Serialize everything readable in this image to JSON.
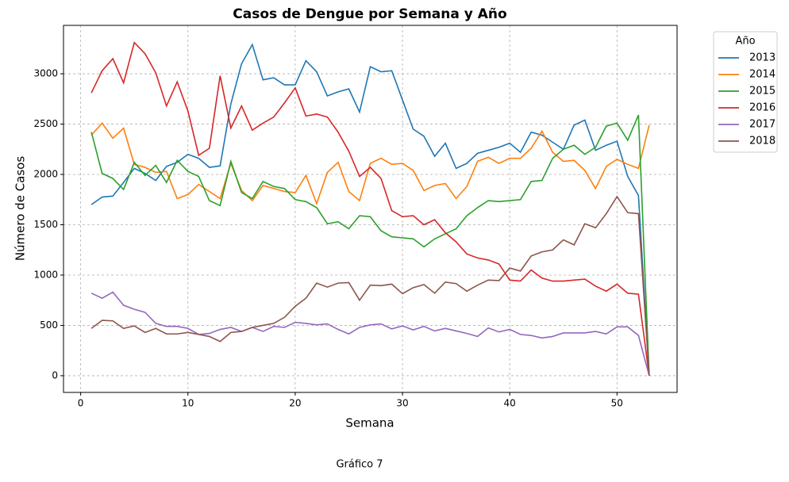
{
  "chart_data": {
    "type": "line",
    "title": "Casos de Dengue por Semana y Año",
    "xlabel": "Semana",
    "ylabel": "Número de Casos",
    "caption": "Gráfico 7",
    "legend_title": "Año",
    "legend": "outside upper right",
    "grid": true,
    "x": [
      1,
      2,
      3,
      4,
      5,
      6,
      7,
      8,
      9,
      10,
      11,
      12,
      13,
      14,
      15,
      16,
      17,
      18,
      19,
      20,
      21,
      22,
      23,
      24,
      25,
      26,
      27,
      28,
      29,
      30,
      31,
      32,
      33,
      34,
      35,
      36,
      37,
      38,
      39,
      40,
      41,
      42,
      43,
      44,
      45,
      46,
      47,
      48,
      49,
      50,
      51,
      52,
      53
    ],
    "xlim": [
      -1.6,
      55.6
    ],
    "xticks": [
      0,
      10,
      20,
      30,
      40,
      50
    ],
    "ylim": [
      -166,
      3481
    ],
    "yticks": [
      0,
      500,
      1000,
      1500,
      2000,
      2500,
      3000
    ],
    "series": [
      {
        "name": "2013",
        "color": "#1f77b4",
        "values": [
          1700,
          1775,
          1785,
          1920,
          2060,
          2010,
          1940,
          2080,
          2120,
          2200,
          2160,
          2070,
          2085,
          2700,
          3100,
          3290,
          2940,
          2960,
          2890,
          2890,
          3130,
          3020,
          2780,
          2820,
          2850,
          2620,
          3070,
          3020,
          3030,
          2740,
          2450,
          2380,
          2180,
          2310,
          2060,
          2110,
          2210,
          2240,
          2270,
          2310,
          2220,
          2420,
          2390,
          2320,
          2250,
          2490,
          2540,
          2240,
          2290,
          2330,
          1980,
          1790,
          0
        ]
      },
      {
        "name": "2014",
        "color": "#ff7f0e",
        "values": [
          2390,
          2510,
          2360,
          2460,
          2100,
          2070,
          2020,
          2030,
          1760,
          1800,
          1900,
          1830,
          1760,
          2110,
          1840,
          1740,
          1890,
          1860,
          1830,
          1820,
          1990,
          1710,
          2020,
          2120,
          1830,
          1740,
          2110,
          2160,
          2100,
          2110,
          2040,
          1840,
          1890,
          1910,
          1760,
          1880,
          2130,
          2170,
          2110,
          2160,
          2160,
          2260,
          2430,
          2220,
          2130,
          2140,
          2040,
          1860,
          2080,
          2150,
          2100,
          2060,
          2490
        ]
      },
      {
        "name": "2015",
        "color": "#2ca02c",
        "values": [
          2420,
          2010,
          1960,
          1850,
          2120,
          1990,
          2090,
          1920,
          2140,
          2030,
          1980,
          1740,
          1690,
          2130,
          1820,
          1760,
          1930,
          1880,
          1860,
          1750,
          1730,
          1670,
          1510,
          1530,
          1460,
          1590,
          1580,
          1440,
          1380,
          1370,
          1360,
          1280,
          1360,
          1410,
          1460,
          1590,
          1670,
          1740,
          1730,
          1740,
          1750,
          1930,
          1940,
          2160,
          2250,
          2290,
          2200,
          2270,
          2480,
          2510,
          2340,
          2590,
          0
        ]
      },
      {
        "name": "2016",
        "color": "#d62728",
        "values": [
          2810,
          3030,
          3150,
          2910,
          3310,
          3200,
          3010,
          2680,
          2920,
          2630,
          2190,
          2260,
          2980,
          2460,
          2680,
          2440,
          2510,
          2570,
          2710,
          2860,
          2580,
          2600,
          2570,
          2420,
          2230,
          1980,
          2070,
          1960,
          1640,
          1580,
          1590,
          1500,
          1550,
          1420,
          1330,
          1210,
          1170,
          1150,
          1110,
          950,
          940,
          1050,
          970,
          940,
          940,
          950,
          960,
          890,
          840,
          910,
          820,
          810,
          0
        ]
      },
      {
        "name": "2017",
        "color": "#9467bd",
        "values": [
          820,
          770,
          830,
          700,
          660,
          630,
          520,
          490,
          490,
          470,
          410,
          420,
          460,
          480,
          440,
          480,
          440,
          490,
          480,
          530,
          520,
          505,
          515,
          460,
          415,
          480,
          505,
          515,
          465,
          495,
          455,
          490,
          445,
          470,
          445,
          420,
          390,
          475,
          435,
          460,
          410,
          400,
          375,
          390,
          425,
          425,
          425,
          440,
          415,
          485,
          485,
          400,
          0
        ]
      },
      {
        "name": "2018",
        "color": "#8c564b",
        "values": [
          470,
          550,
          545,
          470,
          495,
          430,
          470,
          415,
          415,
          430,
          410,
          390,
          340,
          430,
          440,
          480,
          500,
          520,
          580,
          690,
          770,
          920,
          880,
          920,
          925,
          750,
          900,
          895,
          910,
          815,
          875,
          905,
          820,
          930,
          915,
          840,
          900,
          950,
          945,
          1070,
          1040,
          1190,
          1230,
          1250,
          1350,
          1300,
          1510,
          1470,
          1610,
          1780,
          1620,
          1610,
          0
        ]
      }
    ]
  }
}
